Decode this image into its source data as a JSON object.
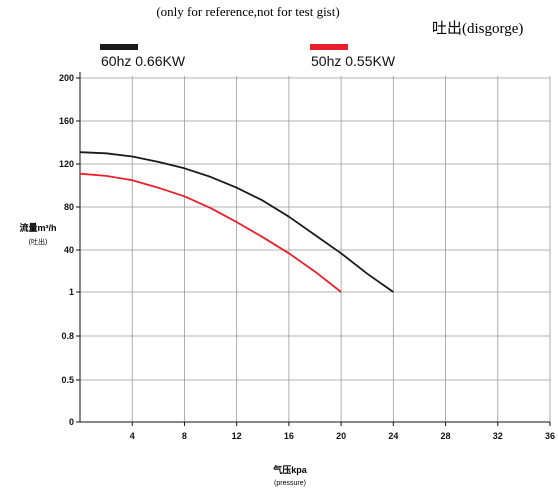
{
  "chart_data": {
    "type": "line",
    "title": "(only for reference,not for test gist)",
    "subtitle": "吐出(disgorge)",
    "ylabel": "流量m³/h",
    "ylabel_sub": "(吐出)",
    "xlabel": "气压kpa",
    "xlabel_sub": "(pressure)",
    "x_ticks": [
      "4",
      "8",
      "12",
      "16",
      "20",
      "24",
      "28",
      "32",
      "36"
    ],
    "y_ticks": [
      "0",
      "0.5",
      "0.8",
      "1",
      "40",
      "80",
      "120",
      "160",
      "200"
    ],
    "xlim": [
      0,
      36
    ],
    "grid": true,
    "legend_position": "top",
    "series": [
      {
        "name": "60hz 0.66KW",
        "color": "#1a1a1a",
        "points": [
          [
            0,
            131
          ],
          [
            2,
            130
          ],
          [
            4,
            127
          ],
          [
            6,
            122
          ],
          [
            8,
            116
          ],
          [
            10,
            108
          ],
          [
            12,
            98
          ],
          [
            14,
            86
          ],
          [
            16,
            71
          ],
          [
            18,
            54
          ],
          [
            20,
            37
          ],
          [
            22,
            18
          ],
          [
            24,
            1
          ]
        ]
      },
      {
        "name": "50hz 0.55KW",
        "color": "#e8202a",
        "points": [
          [
            0,
            111
          ],
          [
            2,
            109
          ],
          [
            4,
            105
          ],
          [
            6,
            98
          ],
          [
            8,
            90
          ],
          [
            10,
            79
          ],
          [
            12,
            66
          ],
          [
            14,
            52
          ],
          [
            16,
            37
          ],
          [
            18,
            20
          ],
          [
            20,
            1
          ]
        ]
      }
    ]
  }
}
